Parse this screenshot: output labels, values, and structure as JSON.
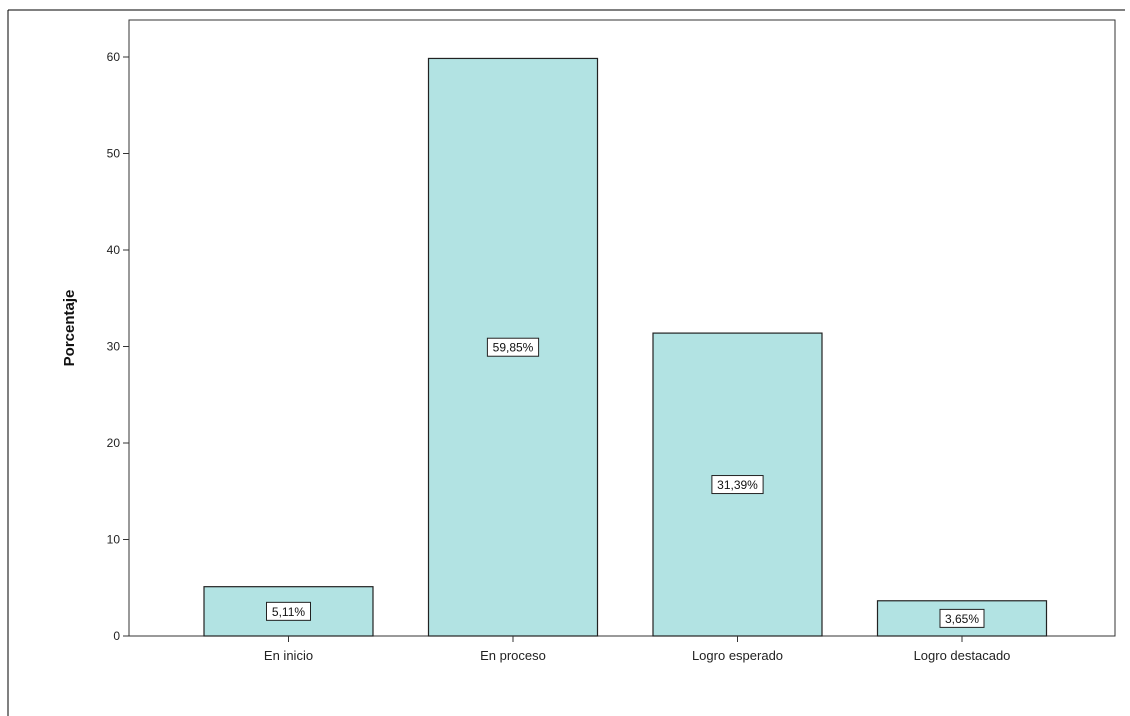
{
  "chart_data": {
    "type": "bar",
    "categories": [
      "En inicio",
      "En proceso",
      "Logro esperado",
      "Logro destacado"
    ],
    "values": [
      5.11,
      59.85,
      31.39,
      3.65
    ],
    "data_labels": [
      "5,11%",
      "59,85%",
      "31,39%",
      "3,65%"
    ],
    "title": "",
    "xlabel": "",
    "ylabel": "Porcentaje",
    "ylim": [
      0,
      60
    ],
    "yticks": [
      0,
      10,
      20,
      30,
      40,
      50,
      60
    ],
    "grid": false,
    "legend": "none",
    "bar_color": "#b2e3e3",
    "bar_edge_color": "#222222"
  }
}
